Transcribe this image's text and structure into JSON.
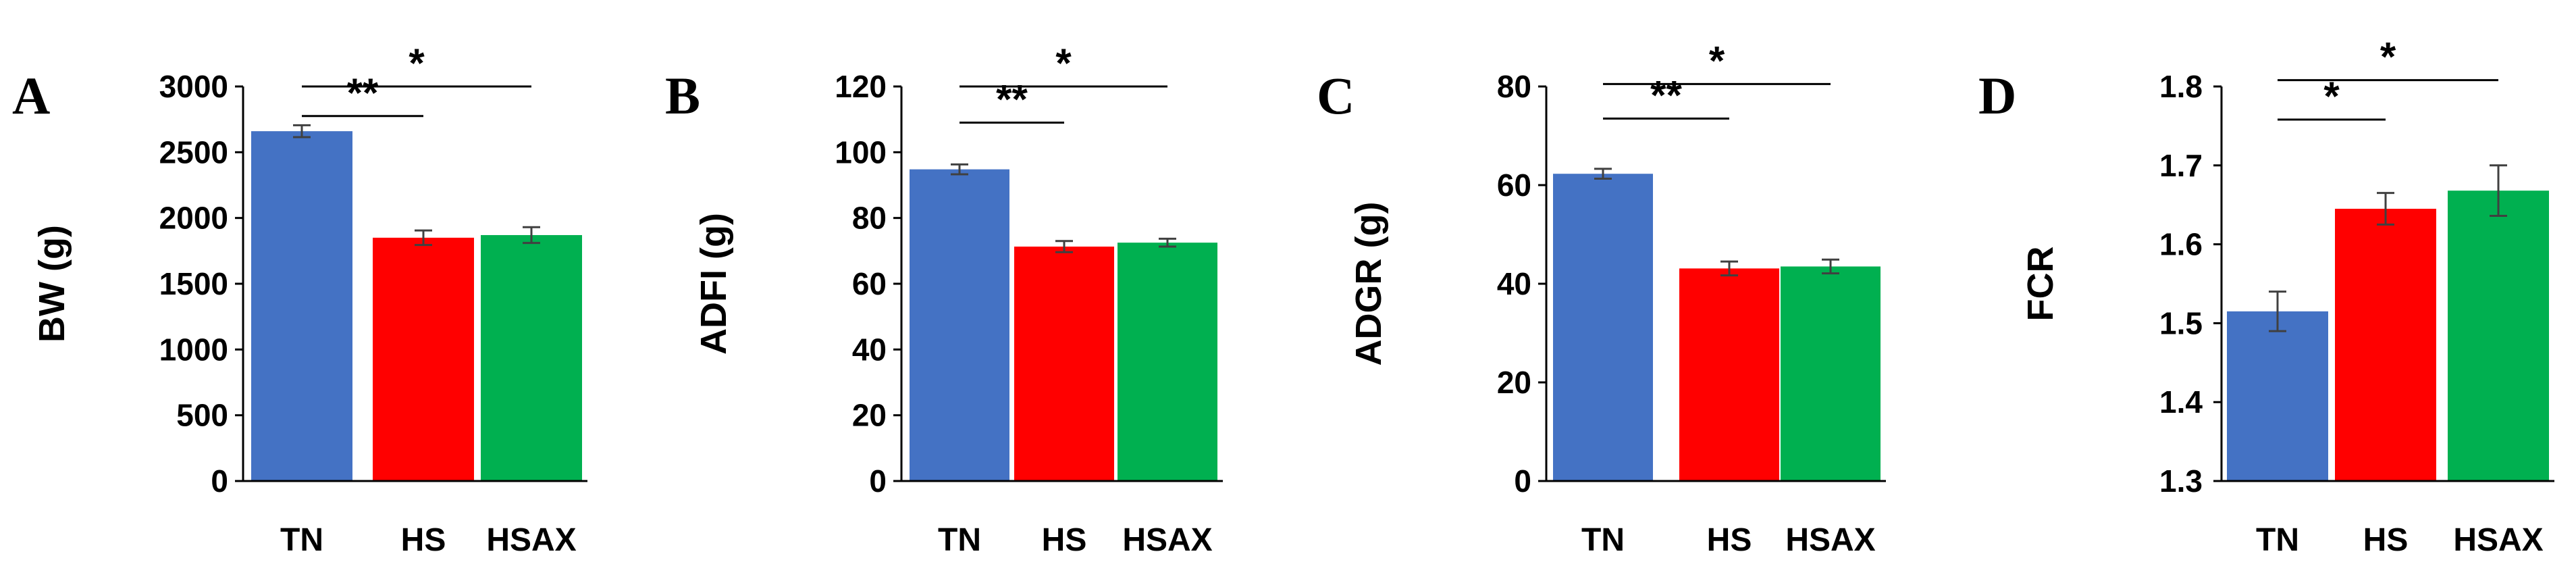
{
  "colors": {
    "TN": "#4472C4",
    "HS": "#FF0000",
    "HSAX": "#00B050",
    "axis": "#000000",
    "error_bar": "#404040"
  },
  "chart_data": [
    {
      "type": "bar",
      "panel": "A",
      "categories": [
        "TN",
        "HS",
        "HSAX"
      ],
      "values": [
        2660,
        1850,
        1870
      ],
      "errors": [
        45,
        55,
        60
      ],
      "ylabel": "BW (g)",
      "ylim": [
        0,
        3000
      ],
      "yticks": [
        "0",
        "500",
        "1000",
        "1500",
        "2000",
        "2500",
        "3000"
      ],
      "significance": [
        {
          "from": "TN",
          "to": "HS",
          "label": "**",
          "level": 2775
        },
        {
          "from": "TN",
          "to": "HSAX",
          "label": "*",
          "level": 3000
        }
      ]
    },
    {
      "type": "bar",
      "panel": "B",
      "categories": [
        "TN",
        "HS",
        "HSAX"
      ],
      "values": [
        94.8,
        71.3,
        72.5
      ],
      "errors": [
        1.5,
        1.7,
        1.2
      ],
      "ylabel": "ADFI (g)",
      "ylim": [
        0,
        120
      ],
      "yticks": [
        "0",
        "20",
        "40",
        "60",
        "80",
        "100",
        "120"
      ],
      "significance": [
        {
          "from": "TN",
          "to": "HS",
          "label": "**",
          "level": 109
        },
        {
          "from": "TN",
          "to": "HSAX",
          "label": "*",
          "level": 120
        }
      ]
    },
    {
      "type": "bar",
      "panel": "C",
      "categories": [
        "TN",
        "HS",
        "HSAX"
      ],
      "values": [
        62.3,
        43.1,
        43.5
      ],
      "errors": [
        1.0,
        1.4,
        1.4
      ],
      "ylabel": "ADGR (g)",
      "ylim": [
        0,
        80
      ],
      "yticks": [
        "0",
        "20",
        "40",
        "60",
        "80"
      ],
      "significance": [
        {
          "from": "TN",
          "to": "HS",
          "label": "**",
          "level": 73.5
        },
        {
          "from": "TN",
          "to": "HSAX",
          "label": "*",
          "level": 80.5
        }
      ]
    },
    {
      "type": "bar",
      "panel": "D",
      "categories": [
        "TN",
        "HS",
        "HSAX"
      ],
      "values": [
        1.515,
        1.645,
        1.668
      ],
      "errors": [
        0.025,
        0.02,
        0.032
      ],
      "ylabel": "FCR",
      "ylim": [
        1.3,
        1.8
      ],
      "yticks": [
        "1.3",
        "1.4",
        "1.5",
        "1.6",
        "1.7",
        "1.8"
      ],
      "significance": [
        {
          "from": "TN",
          "to": "HS",
          "label": "*",
          "level": 1.758
        },
        {
          "from": "TN",
          "to": "HSAX",
          "label": "*",
          "level": 1.808
        }
      ]
    }
  ]
}
